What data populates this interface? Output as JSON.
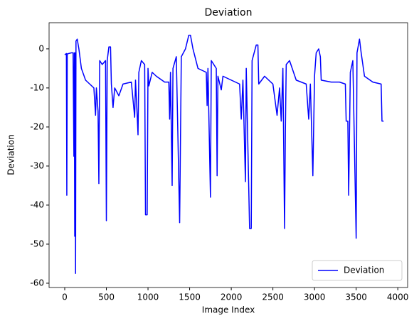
{
  "chart_data": {
    "type": "line",
    "title": "Deviation",
    "xlabel": "Image Index",
    "ylabel": "Deviation",
    "xlim": [
      -188,
      4118
    ],
    "ylim": [
      -61.1,
      6.7
    ],
    "xticks": [
      0,
      500,
      1000,
      1500,
      2000,
      2500,
      3000,
      3500,
      4000
    ],
    "yticks": [
      -60,
      -50,
      -40,
      -30,
      -20,
      -10,
      0
    ],
    "legend": "lower right",
    "series": [
      {
        "name": "Deviation",
        "color": "#0000ff",
        "x": [
          0,
          20,
          25,
          30,
          80,
          100,
          110,
          115,
          120,
          125,
          130,
          135,
          150,
          170,
          200,
          250,
          300,
          350,
          370,
          380,
          400,
          410,
          420,
          450,
          490,
          500,
          510,
          530,
          550,
          560,
          580,
          600,
          650,
          700,
          800,
          840,
          850,
          870,
          880,
          890,
          920,
          960,
          970,
          990,
          1000,
          1010,
          1050,
          1100,
          1200,
          1250,
          1260,
          1270,
          1290,
          1300,
          1340,
          1380,
          1400,
          1450,
          1490,
          1510,
          1540,
          1600,
          1700,
          1710,
          1720,
          1750,
          1760,
          1820,
          1830,
          1840,
          1880,
          1900,
          2000,
          2100,
          2120,
          2140,
          2170,
          2180,
          2220,
          2240,
          2250,
          2300,
          2320,
          2330,
          2400,
          2500,
          2550,
          2580,
          2600,
          2620,
          2640,
          2650,
          2660,
          2700,
          2780,
          2900,
          2930,
          2950,
          2980,
          3000,
          3020,
          3050,
          3070,
          3080,
          3200,
          3300,
          3370,
          3380,
          3400,
          3410,
          3430,
          3460,
          3500,
          3510,
          3540,
          3560,
          3600,
          3700,
          3800,
          3810,
          3830
        ],
        "values": [
          -1.5,
          -1.2,
          -37.5,
          -1.3,
          -1,
          -1,
          -27.5,
          -1,
          -48,
          -1,
          -57.5,
          2,
          2.5,
          0,
          -5,
          -8,
          -9,
          -10,
          -17,
          -10,
          -16,
          -34.5,
          -3,
          -4,
          -3,
          -44,
          -3,
          0.5,
          0.5,
          -9,
          -15,
          -10,
          -12,
          -9,
          -8.5,
          -17.5,
          -8,
          -17,
          -22,
          -6,
          -3,
          -4,
          -42.5,
          -42.5,
          -5,
          -9.5,
          -6,
          -7,
          -8.5,
          -8.5,
          -18,
          -6,
          -35,
          -5,
          -2,
          -44.5,
          -2,
          0,
          3.5,
          3.5,
          0,
          -5,
          -6,
          -14.5,
          -5,
          -38,
          -3,
          -5,
          -32.5,
          -7,
          -10.5,
          -7,
          -8,
          -9,
          -18,
          -8,
          -34,
          -5,
          -46,
          -46,
          -3,
          1,
          1,
          -9,
          -7,
          -9,
          -17,
          -10,
          -18.5,
          -5,
          -46,
          -21,
          -4,
          -3,
          -8,
          -9,
          -18,
          -9,
          -32.5,
          -7,
          -1,
          0,
          -2,
          -8,
          -8.5,
          -8.5,
          -9,
          -18.5,
          -18.5,
          -37.5,
          -6,
          -3,
          -48.5,
          -1,
          2.5,
          -1,
          -7,
          -8.5,
          -9,
          -18.5,
          -18.5
        ]
      }
    ]
  }
}
